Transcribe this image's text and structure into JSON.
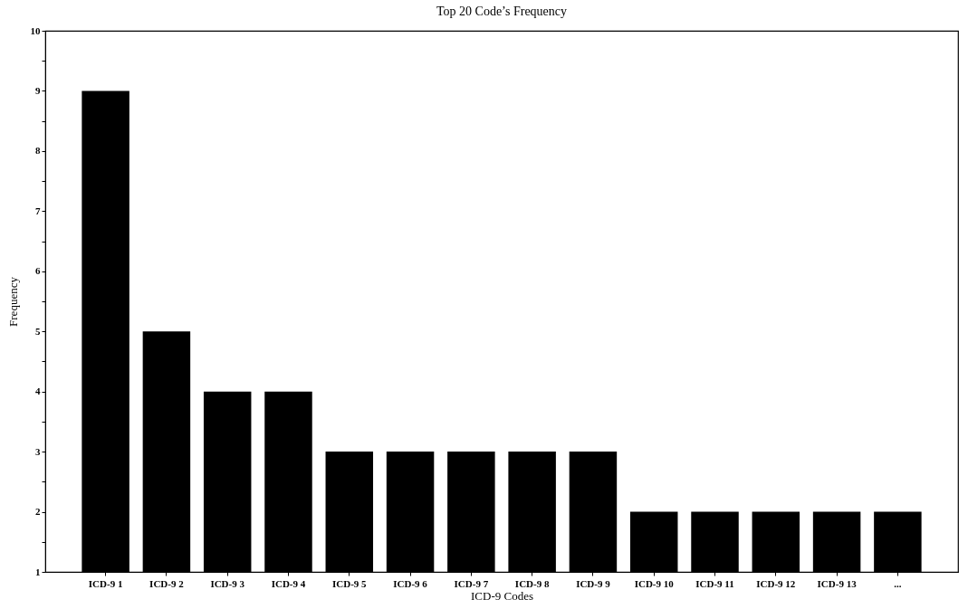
{
  "chart_data": {
    "type": "bar",
    "title": "Top 20 Code’s Frequency",
    "xlabel": "ICD-9 Codes",
    "ylabel": "Frequency",
    "categories": [
      "ICD-9 1",
      "ICD-9 2",
      "ICD-9 3",
      "ICD-9 4",
      "ICD-9 5",
      "ICD-9 6",
      "ICD-9 7",
      "ICD-9 8",
      "ICD-9 9",
      "ICD-9 10",
      "ICD-9 11",
      "ICD-9 12",
      "ICD-9 13",
      "..."
    ],
    "values": [
      9,
      5,
      4,
      4,
      3,
      3,
      3,
      3,
      3,
      2,
      2,
      2,
      2,
      2
    ],
    "color": "#000000",
    "ylim": [
      1,
      10
    ],
    "yticks": [
      1,
      {
        "value": 1.5,
        "label": null
      },
      2,
      {
        "value": 2.5,
        "label": null
      },
      3,
      {
        "value": 3.5,
        "label": null
      },
      4,
      {
        "value": 4.5,
        "label": null
      },
      5,
      {
        "value": 5.5,
        "label": null
      },
      6,
      {
        "value": 6.5,
        "label": null
      },
      7,
      {
        "value": 7.5,
        "label": null
      },
      8,
      {
        "value": 8.5,
        "label": null
      },
      9,
      {
        "value": 9.5,
        "label": null
      },
      10
    ],
    "grid": false
  }
}
